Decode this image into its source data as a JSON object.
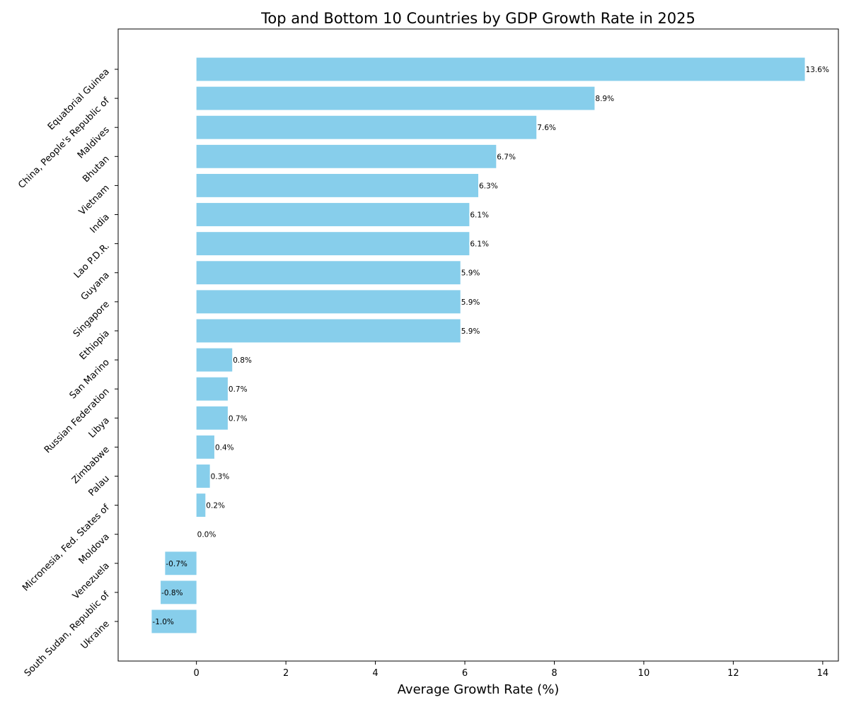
{
  "chart_data": {
    "type": "bar",
    "orientation": "horizontal",
    "title": "Top and Bottom 10 Countries by GDP Growth Rate in 2025",
    "xlabel": "Average Growth Rate (%)",
    "ylabel": "",
    "xlim": [
      -1.75,
      14.35
    ],
    "xticks": [
      "0",
      "2",
      "4",
      "6",
      "8",
      "10",
      "12",
      "14"
    ],
    "grid": false,
    "bar_color": "#87ceeb",
    "categories": [
      "Equatorial Guinea",
      "China, People's Republic of",
      "Maldives",
      "Bhutan",
      "Vietnam",
      "India",
      "Lao P.D.R.",
      "Guyana",
      "Singapore",
      "Ethiopia",
      "San Marino",
      "Russian Federation",
      "Libya",
      "Zimbabwe",
      "Palau",
      "Micronesia, Fed. States of",
      "Moldova",
      "Venezuela",
      "South Sudan, Republic of",
      "Ukraine"
    ],
    "values": [
      13.6,
      8.9,
      7.6,
      6.7,
      6.3,
      6.1,
      6.1,
      5.9,
      5.9,
      5.9,
      0.8,
      0.7,
      0.7,
      0.4,
      0.3,
      0.2,
      0.0,
      -0.7,
      -0.8,
      -1.0
    ],
    "value_labels": [
      "13.6%",
      "8.9%",
      "7.6%",
      "6.7%",
      "6.3%",
      "6.1%",
      "6.1%",
      "5.9%",
      "5.9%",
      "5.9%",
      "0.8%",
      "0.7%",
      "0.7%",
      "0.4%",
      "0.3%",
      "0.2%",
      "0.0%",
      "-0.7%",
      "-0.8%",
      "-1.0%"
    ]
  }
}
